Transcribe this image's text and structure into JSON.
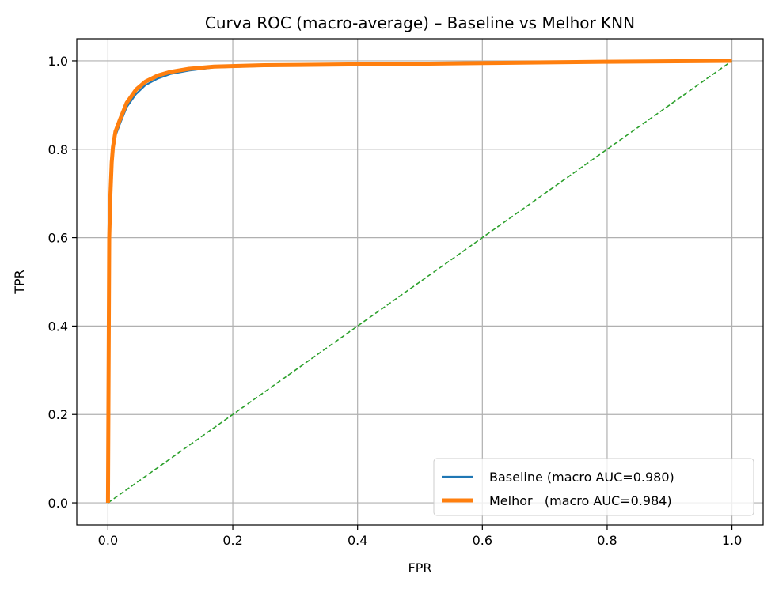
{
  "chart_data": {
    "type": "line",
    "title": "Curva ROC (macro-average) – Baseline vs Melhor KNN",
    "xlabel": "FPR",
    "ylabel": "TPR",
    "xlim": [
      -0.05,
      1.05
    ],
    "ylim": [
      -0.05,
      1.05
    ],
    "xticks": [
      "0.0",
      "0.2",
      "0.4",
      "0.6",
      "0.8",
      "1.0"
    ],
    "yticks": [
      "0.0",
      "0.2",
      "0.4",
      "0.6",
      "0.8",
      "1.0"
    ],
    "grid": true,
    "legend_position": "lower-right",
    "series": [
      {
        "name": "Baseline (macro AUC=0.980)",
        "color": "#1f77b4",
        "style": "solid",
        "x": [
          0.0,
          0.002,
          0.004,
          0.006,
          0.008,
          0.012,
          0.02,
          0.03,
          0.045,
          0.06,
          0.08,
          0.1,
          0.13,
          0.17,
          0.25,
          0.4,
          0.6,
          0.8,
          1.0
        ],
        "y": [
          0.0,
          0.55,
          0.66,
          0.74,
          0.79,
          0.83,
          0.86,
          0.895,
          0.925,
          0.945,
          0.96,
          0.97,
          0.978,
          0.985,
          0.988,
          0.991,
          0.994,
          0.997,
          1.0
        ]
      },
      {
        "name": "Melhor   (macro AUC=0.984)",
        "color": "#ff7f0e",
        "style": "solid",
        "x": [
          0.0,
          0.002,
          0.004,
          0.006,
          0.008,
          0.012,
          0.02,
          0.03,
          0.045,
          0.06,
          0.08,
          0.1,
          0.13,
          0.17,
          0.25,
          0.4,
          0.6,
          0.8,
          1.0
        ],
        "y": [
          0.0,
          0.6,
          0.7,
          0.77,
          0.805,
          0.84,
          0.87,
          0.905,
          0.935,
          0.953,
          0.967,
          0.975,
          0.982,
          0.987,
          0.99,
          0.992,
          0.995,
          0.998,
          1.0
        ]
      },
      {
        "name": "",
        "color": "#2ca02c",
        "style": "dashed",
        "x": [
          0.0,
          1.0
        ],
        "y": [
          0.0,
          1.0
        ]
      }
    ]
  }
}
